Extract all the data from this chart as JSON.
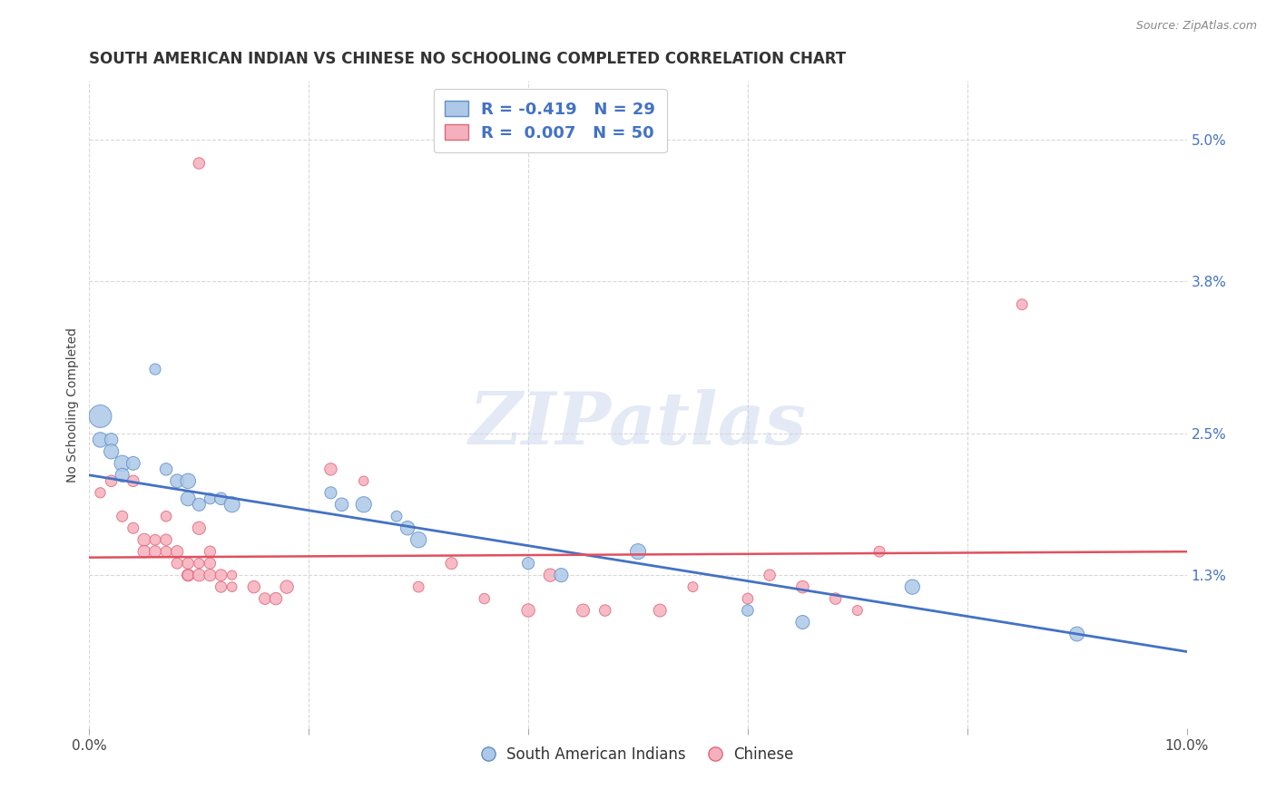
{
  "title": "SOUTH AMERICAN INDIAN VS CHINESE NO SCHOOLING COMPLETED CORRELATION CHART",
  "source": "Source: ZipAtlas.com",
  "ylabel": "No Schooling Completed",
  "xlim": [
    0.0,
    0.1
  ],
  "ylim": [
    0.0,
    0.055
  ],
  "xticks": [
    0.0,
    0.02,
    0.04,
    0.06,
    0.08,
    0.1
  ],
  "xticklabels": [
    "0.0%",
    "",
    "",
    "",
    "",
    "10.0%"
  ],
  "yticks_right": [
    0.013,
    0.025,
    0.038,
    0.05
  ],
  "yticklabels_right": [
    "1.3%",
    "2.5%",
    "3.8%",
    "5.0%"
  ],
  "blue_color": "#adc8e8",
  "pink_color": "#f5b0be",
  "blue_edge_color": "#6090c8",
  "pink_edge_color": "#e06878",
  "blue_line_color": "#4472c4",
  "pink_line_color": "#e05060",
  "legend_blue_label": "R = -0.419   N = 29",
  "legend_pink_label": "R =  0.007   N = 50",
  "watermark": "ZIPatlas",
  "blue_scatter": [
    [
      0.001,
      0.0265
    ],
    [
      0.001,
      0.0245
    ],
    [
      0.002,
      0.0245
    ],
    [
      0.002,
      0.0235
    ],
    [
      0.003,
      0.0225
    ],
    [
      0.003,
      0.0215
    ],
    [
      0.004,
      0.0225
    ],
    [
      0.006,
      0.0305
    ],
    [
      0.007,
      0.022
    ],
    [
      0.008,
      0.021
    ],
    [
      0.009,
      0.0195
    ],
    [
      0.009,
      0.021
    ],
    [
      0.01,
      0.019
    ],
    [
      0.011,
      0.0195
    ],
    [
      0.012,
      0.0195
    ],
    [
      0.013,
      0.019
    ],
    [
      0.022,
      0.02
    ],
    [
      0.023,
      0.019
    ],
    [
      0.025,
      0.019
    ],
    [
      0.028,
      0.018
    ],
    [
      0.029,
      0.017
    ],
    [
      0.03,
      0.016
    ],
    [
      0.04,
      0.014
    ],
    [
      0.043,
      0.013
    ],
    [
      0.05,
      0.015
    ],
    [
      0.06,
      0.01
    ],
    [
      0.065,
      0.009
    ],
    [
      0.075,
      0.012
    ],
    [
      0.09,
      0.008
    ]
  ],
  "pink_scatter": [
    [
      0.01,
      0.048
    ],
    [
      0.001,
      0.02
    ],
    [
      0.002,
      0.021
    ],
    [
      0.003,
      0.018
    ],
    [
      0.004,
      0.021
    ],
    [
      0.004,
      0.017
    ],
    [
      0.005,
      0.016
    ],
    [
      0.005,
      0.015
    ],
    [
      0.006,
      0.016
    ],
    [
      0.006,
      0.015
    ],
    [
      0.007,
      0.018
    ],
    [
      0.007,
      0.016
    ],
    [
      0.007,
      0.015
    ],
    [
      0.008,
      0.015
    ],
    [
      0.008,
      0.014
    ],
    [
      0.009,
      0.014
    ],
    [
      0.009,
      0.013
    ],
    [
      0.009,
      0.013
    ],
    [
      0.01,
      0.017
    ],
    [
      0.01,
      0.014
    ],
    [
      0.01,
      0.013
    ],
    [
      0.011,
      0.015
    ],
    [
      0.011,
      0.014
    ],
    [
      0.011,
      0.013
    ],
    [
      0.012,
      0.013
    ],
    [
      0.012,
      0.012
    ],
    [
      0.013,
      0.013
    ],
    [
      0.013,
      0.012
    ],
    [
      0.015,
      0.012
    ],
    [
      0.016,
      0.011
    ],
    [
      0.017,
      0.011
    ],
    [
      0.018,
      0.012
    ],
    [
      0.022,
      0.022
    ],
    [
      0.025,
      0.021
    ],
    [
      0.03,
      0.012
    ],
    [
      0.033,
      0.014
    ],
    [
      0.036,
      0.011
    ],
    [
      0.04,
      0.01
    ],
    [
      0.042,
      0.013
    ],
    [
      0.045,
      0.01
    ],
    [
      0.047,
      0.01
    ],
    [
      0.052,
      0.01
    ],
    [
      0.055,
      0.012
    ],
    [
      0.06,
      0.011
    ],
    [
      0.062,
      0.013
    ],
    [
      0.065,
      0.012
    ],
    [
      0.068,
      0.011
    ],
    [
      0.07,
      0.01
    ],
    [
      0.072,
      0.015
    ],
    [
      0.085,
      0.036
    ]
  ],
  "blue_line_x": [
    0.0,
    0.1
  ],
  "blue_line_y": [
    0.0215,
    0.0065
  ],
  "pink_line_x": [
    0.0,
    0.1
  ],
  "pink_line_y": [
    0.0145,
    0.015
  ],
  "grid_color": "#d8d8d8",
  "background_color": "#ffffff",
  "title_fontsize": 12,
  "axis_label_fontsize": 10,
  "tick_fontsize": 11,
  "legend_fontsize": 13
}
